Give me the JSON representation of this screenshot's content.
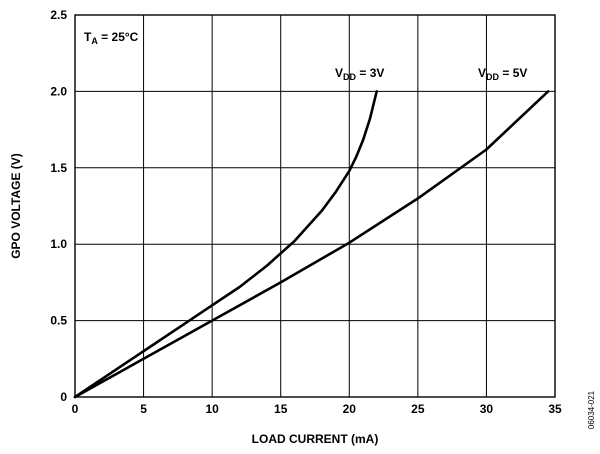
{
  "chart_data": {
    "type": "line",
    "xlabel": "LOAD CURRENT (mA)",
    "ylabel": "GPO VOLTAGE (V)",
    "xlim": [
      0,
      35
    ],
    "ylim": [
      0,
      2.5
    ],
    "x_ticks": [
      0,
      5,
      10,
      15,
      20,
      25,
      30,
      35
    ],
    "y_ticks": [
      0,
      0.5,
      1.0,
      1.5,
      2.0,
      2.5
    ],
    "x_tick_labels": [
      "0",
      "5",
      "10",
      "15",
      "20",
      "25",
      "30",
      "35"
    ],
    "y_tick_labels": [
      "0",
      "0.5",
      "1.0",
      "1.5",
      "2.0",
      "2.5"
    ],
    "grid": true,
    "annotations": {
      "temperature": {
        "main": "T",
        "sub": "A",
        "rest": " = 25°C"
      }
    },
    "series": [
      {
        "label": {
          "main": "V",
          "sub": "DD",
          "rest": " = 3V"
        },
        "x": [
          0,
          2,
          4,
          6,
          8,
          10,
          12,
          14,
          16,
          18,
          19,
          20,
          20.5,
          21,
          21.5,
          22
        ],
        "y": [
          0,
          0.12,
          0.24,
          0.36,
          0.48,
          0.6,
          0.72,
          0.86,
          1.02,
          1.22,
          1.34,
          1.48,
          1.57,
          1.68,
          1.82,
          2.0
        ]
      },
      {
        "label": {
          "main": "V",
          "sub": "DD",
          "rest": " = 5V"
        },
        "x": [
          0,
          5,
          10,
          15,
          20,
          25,
          30,
          34.5
        ],
        "y": [
          0,
          0.25,
          0.5,
          0.75,
          1.01,
          1.3,
          1.62,
          2.0
        ]
      }
    ]
  },
  "figure_id": "06034-021"
}
